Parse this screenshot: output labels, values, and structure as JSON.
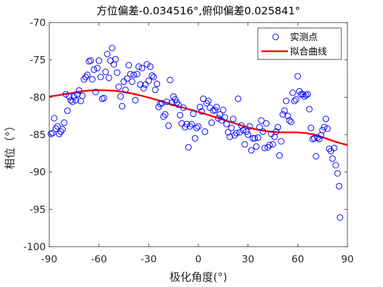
{
  "chart_data": {
    "type": "scatter",
    "title": "方位偏差-0.034516°,俯仰偏差0.025841°",
    "xlabel": "极化角度(°)",
    "ylabel": "相位（°）",
    "xlim": [
      -90,
      90
    ],
    "ylim": [
      -100,
      -70
    ],
    "xticks": [
      -90,
      -60,
      -30,
      0,
      30,
      60,
      90
    ],
    "yticks": [
      -70,
      -75,
      -80,
      -85,
      -90,
      -95,
      -100
    ],
    "legend_position": "top-right",
    "grid": false,
    "series": [
      {
        "name": "实测点",
        "kind": "scatter",
        "marker": "open-circle",
        "color": "#0000ff",
        "points": [
          [
            -89.0,
            -84.9
          ],
          [
            -88.0,
            -84.8
          ],
          [
            -87.0,
            -82.8
          ],
          [
            -86.0,
            -84.2
          ],
          [
            -85.0,
            -83.9
          ],
          [
            -84.0,
            -84.9
          ],
          [
            -83.0,
            -84.6
          ],
          [
            -82.0,
            -84.3
          ],
          [
            -81.0,
            -83.4
          ],
          [
            -80.0,
            -79.6
          ],
          [
            -79.0,
            -81.8
          ],
          [
            -78.0,
            -79.9
          ],
          [
            -77.0,
            -80.4
          ],
          [
            -76.0,
            -80.6
          ],
          [
            -75.0,
            -79.9
          ],
          [
            -74.0,
            -80.4
          ],
          [
            -73.0,
            -79.6
          ],
          [
            -72.0,
            -79.1
          ],
          [
            -71.0,
            -80.5
          ],
          [
            -70.0,
            -79.8
          ],
          [
            -69.0,
            -77.6
          ],
          [
            -68.0,
            -77.3
          ],
          [
            -67.0,
            -77.0
          ],
          [
            -66.0,
            -75.2
          ],
          [
            -65.0,
            -75.1
          ],
          [
            -64.0,
            -77.6
          ],
          [
            -63.0,
            -76.3
          ],
          [
            -62.0,
            -79.3
          ],
          [
            -61.0,
            -76.1
          ],
          [
            -60.0,
            -75.1
          ],
          [
            -59.0,
            -77.3
          ],
          [
            -58.0,
            -80.2
          ],
          [
            -57.0,
            -80.1
          ],
          [
            -56.0,
            -76.6
          ],
          [
            -55.0,
            -74.2
          ],
          [
            -54.0,
            -77.4
          ],
          [
            -53.0,
            -75.1
          ],
          [
            -52.0,
            -73.4
          ],
          [
            -51.0,
            -75.6
          ],
          [
            -50.0,
            -74.9
          ],
          [
            -49.0,
            -76.7
          ],
          [
            -48.0,
            -78.6
          ],
          [
            -47.0,
            -79.9
          ],
          [
            -46.0,
            -81.2
          ],
          [
            -45.0,
            -77.9
          ],
          [
            -44.0,
            -79.0
          ],
          [
            -43.0,
            -77.5
          ],
          [
            -42.0,
            -75.7
          ],
          [
            -41.0,
            -76.9
          ],
          [
            -40.0,
            -77.9
          ],
          [
            -39.0,
            -77.0
          ],
          [
            -38.0,
            -80.4
          ],
          [
            -37.0,
            -76.9
          ],
          [
            -36.0,
            -75.9
          ],
          [
            -35.0,
            -78.3
          ],
          [
            -34.0,
            -76.1
          ],
          [
            -33.0,
            -78.8
          ],
          [
            -32.0,
            -78.3
          ],
          [
            -31.0,
            -75.6
          ],
          [
            -30.0,
            -77.8
          ],
          [
            -29.0,
            -75.9
          ],
          [
            -28.0,
            -77.1
          ],
          [
            -27.0,
            -77.3
          ],
          [
            -26.0,
            -79.0
          ],
          [
            -25.0,
            -78.2
          ],
          [
            -24.0,
            -81.3
          ],
          [
            -23.0,
            -80.9
          ],
          [
            -22.0,
            -80.8
          ],
          [
            -21.0,
            -82.6
          ],
          [
            -20.0,
            -82.3
          ],
          [
            -19.0,
            -80.6
          ],
          [
            -18.0,
            -83.8
          ],
          [
            -17.0,
            -77.7
          ],
          [
            -16.0,
            -80.7
          ],
          [
            -15.0,
            -79.9
          ],
          [
            -14.0,
            -80.3
          ],
          [
            -13.0,
            -80.7
          ],
          [
            -12.0,
            -81.0
          ],
          [
            -11.0,
            -82.4
          ],
          [
            -10.0,
            -83.5
          ],
          [
            -9.0,
            -81.4
          ],
          [
            -8.0,
            -84.0
          ],
          [
            -7.0,
            -83.6
          ],
          [
            -6.0,
            -86.7
          ],
          [
            -5.0,
            -83.9
          ],
          [
            -4.0,
            -83.6
          ],
          [
            -3.0,
            -82.2
          ],
          [
            -2.0,
            -85.5
          ],
          [
            -1.0,
            -84.1
          ],
          [
            0.0,
            -83.9
          ],
          [
            1.0,
            -81.3
          ],
          [
            2.0,
            -81.9
          ],
          [
            3.0,
            -80.2
          ],
          [
            4.0,
            -84.6
          ],
          [
            5.0,
            -80.8
          ],
          [
            6.0,
            -80.5
          ],
          [
            7.0,
            -81.4
          ],
          [
            8.0,
            -83.4
          ],
          [
            9.0,
            -81.8
          ],
          [
            10.0,
            -81.7
          ],
          [
            11.0,
            -81.3
          ],
          [
            12.0,
            -82.8
          ],
          [
            13.0,
            -82.3
          ],
          [
            14.0,
            -83.1
          ],
          [
            15.0,
            -81.7
          ],
          [
            16.0,
            -82.7
          ],
          [
            17.0,
            -83.6
          ],
          [
            18.0,
            -84.7
          ],
          [
            19.0,
            -85.3
          ],
          [
            20.0,
            -84.1
          ],
          [
            21.0,
            -82.9
          ],
          [
            22.0,
            -85.1
          ],
          [
            23.0,
            -84.8
          ],
          [
            24.0,
            -80.2
          ],
          [
            25.0,
            -84.7
          ],
          [
            26.0,
            -83.8
          ],
          [
            27.0,
            -84.4
          ],
          [
            28.0,
            -86.3
          ],
          [
            29.0,
            -84.6
          ],
          [
            30.0,
            -85.0
          ],
          [
            31.0,
            -83.9
          ],
          [
            32.0,
            -87.1
          ],
          [
            33.0,
            -85.5
          ],
          [
            34.0,
            -85.5
          ],
          [
            35.0,
            -86.6
          ],
          [
            36.0,
            -85.4
          ],
          [
            37.0,
            -84.0
          ],
          [
            38.0,
            -83.1
          ],
          [
            39.0,
            -84.6
          ],
          [
            40.0,
            -86.8
          ],
          [
            41.0,
            -83.5
          ],
          [
            42.0,
            -86.7
          ],
          [
            43.0,
            -86.4
          ],
          [
            44.0,
            -84.9
          ],
          [
            45.0,
            -86.3
          ],
          [
            46.0,
            -85.3
          ],
          [
            47.0,
            -84.6
          ],
          [
            48.0,
            -84.0
          ],
          [
            49.0,
            -87.8
          ],
          [
            50.0,
            -85.9
          ],
          [
            51.0,
            -82.3
          ],
          [
            52.0,
            -81.8
          ],
          [
            53.0,
            -80.5
          ],
          [
            54.0,
            -82.5
          ],
          [
            55.0,
            -83.1
          ],
          [
            56.0,
            -83.3
          ],
          [
            57.0,
            -79.4
          ],
          [
            58.0,
            -80.5
          ],
          [
            59.0,
            -80.3
          ],
          [
            60.0,
            -77.2
          ],
          [
            61.0,
            -79.2
          ],
          [
            62.0,
            -79.6
          ],
          [
            63.0,
            -79.6
          ],
          [
            64.0,
            -79.9
          ],
          [
            65.0,
            -79.7
          ],
          [
            66.0,
            -79.6
          ],
          [
            67.0,
            -81.6
          ],
          [
            68.0,
            -84.1
          ],
          [
            69.0,
            -85.6
          ],
          [
            70.0,
            -85.5
          ],
          [
            71.0,
            -87.9
          ],
          [
            72.0,
            -85.4
          ],
          [
            73.0,
            -85.6
          ],
          [
            74.0,
            -85.1
          ],
          [
            75.0,
            -84.4
          ],
          [
            76.0,
            -84.0
          ],
          [
            77.0,
            -82.9
          ],
          [
            78.0,
            -84.2
          ],
          [
            79.0,
            -86.9
          ],
          [
            80.0,
            -87.2
          ],
          [
            81.0,
            -88.2
          ],
          [
            82.0,
            -86.8
          ],
          [
            83.0,
            -89.1
          ],
          [
            84.0,
            -90.2
          ],
          [
            85.0,
            -91.9
          ],
          [
            85.5,
            -96.1
          ]
        ]
      },
      {
        "name": "拟合曲线",
        "kind": "line",
        "color": "#ff0000",
        "x": [
          -90,
          -85,
          -80,
          -75,
          -70,
          -65,
          -60,
          -55,
          -50,
          -45,
          -40,
          -35,
          -30,
          -25,
          -20,
          -15,
          -10,
          -5,
          0,
          5,
          10,
          15,
          20,
          25,
          30,
          35,
          40,
          45,
          50,
          55,
          60,
          65,
          70,
          75,
          80,
          85,
          90
        ],
        "y": [
          -79.9,
          -79.75,
          -79.55,
          -79.38,
          -79.2,
          -79.08,
          -79.05,
          -79.08,
          -79.15,
          -79.3,
          -79.5,
          -79.75,
          -80.05,
          -80.35,
          -80.7,
          -81.05,
          -81.35,
          -81.65,
          -81.95,
          -82.3,
          -82.65,
          -83.0,
          -83.35,
          -83.7,
          -84.05,
          -84.3,
          -84.5,
          -84.65,
          -84.7,
          -84.7,
          -84.7,
          -84.8,
          -85.0,
          -85.35,
          -85.75,
          -86.1,
          -86.4
        ]
      }
    ]
  }
}
